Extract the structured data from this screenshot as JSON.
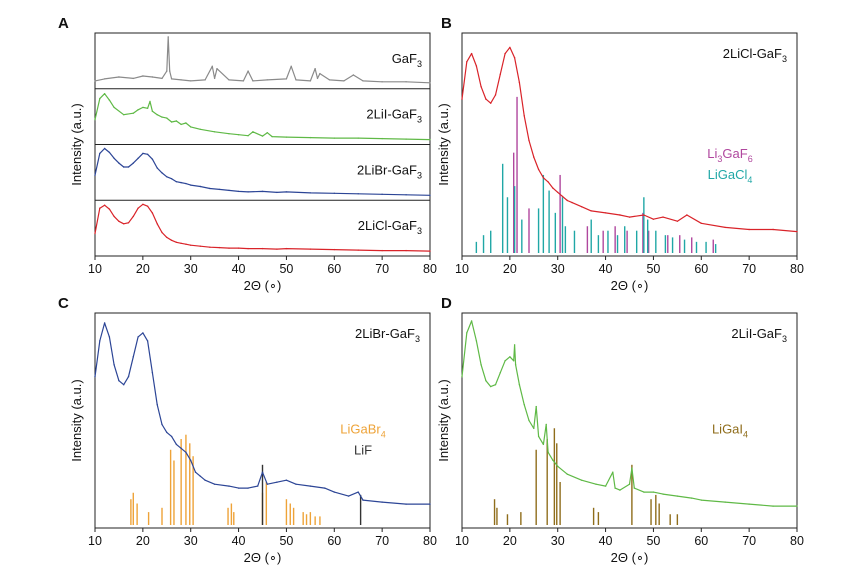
{
  "figure": {
    "background": "#ffffff"
  },
  "chart_data": [
    {
      "panel": "A",
      "type": "line",
      "xlabel": "2Θ (∘)",
      "ylabel": "Intensity (a.u.)",
      "xlim": [
        10,
        80
      ],
      "xticks": [
        10,
        20,
        30,
        40,
        50,
        60,
        70,
        80
      ],
      "stacked": true,
      "series": [
        {
          "label": "GaF",
          "sub": "3",
          "color": "#8a8a8a",
          "x": [
            10,
            12,
            15,
            18,
            20,
            22,
            24,
            25,
            25.3,
            25.6,
            26,
            28,
            30,
            33,
            34.5,
            35,
            35.5,
            38,
            41,
            42,
            43,
            46,
            50,
            51,
            52,
            55,
            56,
            56.5,
            57,
            59,
            62,
            64,
            66,
            70,
            75,
            80
          ],
          "y": [
            0.1,
            0.14,
            0.18,
            0.15,
            0.2,
            0.18,
            0.15,
            0.3,
            1.0,
            0.3,
            0.14,
            0.12,
            0.1,
            0.12,
            0.4,
            0.15,
            0.35,
            0.12,
            0.1,
            0.3,
            0.1,
            0.12,
            0.14,
            0.4,
            0.12,
            0.1,
            0.35,
            0.15,
            0.25,
            0.12,
            0.1,
            0.22,
            0.1,
            0.08,
            0.08,
            0.06
          ]
        },
        {
          "label": "2LiI-GaF",
          "sub": "3",
          "color": "#5fb946",
          "x": [
            10,
            11,
            12,
            13,
            14,
            16,
            18,
            19,
            20,
            21,
            21.5,
            22,
            23,
            24,
            25,
            26,
            27,
            28,
            29,
            30,
            32,
            35,
            38,
            40,
            42,
            43,
            45,
            46,
            47,
            50,
            55,
            60,
            65,
            70,
            75,
            80
          ],
          "y": [
            0.45,
            0.88,
            0.98,
            0.85,
            0.7,
            0.55,
            0.58,
            0.65,
            0.7,
            0.68,
            0.82,
            0.62,
            0.55,
            0.5,
            0.48,
            0.4,
            0.42,
            0.35,
            0.38,
            0.3,
            0.25,
            0.2,
            0.16,
            0.14,
            0.12,
            0.2,
            0.11,
            0.18,
            0.1,
            0.09,
            0.08,
            0.07,
            0.07,
            0.06,
            0.05,
            0.04
          ]
        },
        {
          "label": "2LiBr-GaF",
          "sub": "3",
          "color": "#2c4596",
          "x": [
            10,
            11,
            12,
            13,
            14,
            15,
            16,
            17,
            18,
            19,
            20,
            21,
            22,
            23,
            24,
            25,
            26,
            27,
            28,
            29,
            30,
            32,
            34,
            36,
            38,
            40,
            42,
            45,
            48,
            50,
            55,
            60,
            65,
            70,
            75,
            80
          ],
          "y": [
            0.45,
            0.9,
            1.0,
            0.92,
            0.8,
            0.7,
            0.62,
            0.62,
            0.7,
            0.8,
            0.9,
            0.88,
            0.78,
            0.6,
            0.5,
            0.42,
            0.38,
            0.32,
            0.3,
            0.28,
            0.25,
            0.22,
            0.18,
            0.16,
            0.14,
            0.12,
            0.11,
            0.12,
            0.1,
            0.11,
            0.09,
            0.08,
            0.07,
            0.06,
            0.05,
            0.04
          ]
        },
        {
          "label": "2LiCl-GaF",
          "sub": "3",
          "color": "#d92329",
          "x": [
            10,
            11,
            12,
            13,
            14,
            15,
            16,
            17,
            18,
            19,
            20,
            21,
            22,
            23,
            24,
            25,
            26,
            27,
            28,
            29,
            30,
            32,
            34,
            36,
            38,
            40,
            42,
            45,
            48,
            50,
            55,
            60,
            65,
            70,
            75,
            80
          ],
          "y": [
            0.4,
            0.92,
            0.98,
            0.9,
            0.75,
            0.65,
            0.6,
            0.62,
            0.75,
            0.92,
            1.0,
            0.96,
            0.82,
            0.6,
            0.42,
            0.32,
            0.26,
            0.22,
            0.2,
            0.18,
            0.16,
            0.14,
            0.12,
            0.11,
            0.1,
            0.1,
            0.09,
            0.09,
            0.08,
            0.09,
            0.08,
            0.07,
            0.06,
            0.05,
            0.05,
            0.04
          ]
        }
      ]
    },
    {
      "panel": "B",
      "type": "line",
      "xlabel": "2Θ (∘)",
      "ylabel": "Intensity (a.u.)",
      "xlim": [
        10,
        80
      ],
      "xticks": [
        10,
        20,
        30,
        40,
        50,
        60,
        70,
        80
      ],
      "sample": {
        "label": "2LiCl-GaF",
        "sub": "3"
      },
      "series": [
        {
          "name": "2LiCl-GaF3",
          "color": "#d92329",
          "x": [
            10,
            11,
            12,
            13,
            14,
            15,
            16,
            17,
            18,
            19,
            20,
            21,
            22,
            23,
            24,
            25,
            26,
            27,
            28,
            29,
            30,
            31,
            32,
            33,
            35,
            37,
            40,
            43,
            45,
            48,
            50,
            52,
            55,
            57,
            60,
            65,
            70,
            75,
            80
          ],
          "y": [
            0.7,
            0.88,
            0.92,
            0.86,
            0.76,
            0.7,
            0.68,
            0.72,
            0.82,
            0.92,
            0.95,
            0.9,
            0.78,
            0.62,
            0.5,
            0.42,
            0.36,
            0.32,
            0.3,
            0.27,
            0.25,
            0.23,
            0.21,
            0.2,
            0.18,
            0.16,
            0.15,
            0.14,
            0.13,
            0.14,
            0.12,
            0.13,
            0.11,
            0.14,
            0.1,
            0.08,
            0.07,
            0.07,
            0.06
          ]
        }
      ],
      "references": [
        {
          "label": "Li",
          "sub": "3",
          "label2": "GaF",
          "sub2": "6",
          "color": "#b0479e",
          "positions": [
            20.8,
            21.5,
            24.0,
            30.5,
            36.2,
            39.5,
            42.0,
            44.5,
            47.8,
            49.0,
            53.0,
            55.5,
            58.0,
            62.5
          ],
          "intensities": [
            0.45,
            0.7,
            0.2,
            0.35,
            0.12,
            0.1,
            0.12,
            0.1,
            0.18,
            0.1,
            0.08,
            0.08,
            0.07,
            0.06
          ]
        },
        {
          "label": "LiGaCl",
          "sub": "4",
          "color": "#20a7a6",
          "positions": [
            13.0,
            14.5,
            16.0,
            18.5,
            19.5,
            21.0,
            22.5,
            26.0,
            27.0,
            28.2,
            29.5,
            31.0,
            31.6,
            33.5,
            37.0,
            38.5,
            40.5,
            42.5,
            44.0,
            46.5,
            48.0,
            48.8,
            50.5,
            52.5,
            54.0,
            56.5,
            59.0,
            61.0,
            63.0
          ],
          "intensities": [
            0.05,
            0.08,
            0.1,
            0.4,
            0.25,
            0.3,
            0.15,
            0.2,
            0.35,
            0.28,
            0.18,
            0.25,
            0.12,
            0.1,
            0.15,
            0.08,
            0.1,
            0.08,
            0.12,
            0.1,
            0.25,
            0.15,
            0.1,
            0.08,
            0.07,
            0.06,
            0.05,
            0.05,
            0.04
          ]
        }
      ]
    },
    {
      "panel": "C",
      "type": "line",
      "xlabel": "2Θ (∘)",
      "ylabel": "Intensity (a.u.)",
      "xlim": [
        10,
        80
      ],
      "xticks": [
        10,
        20,
        30,
        40,
        50,
        60,
        70,
        80
      ],
      "sample": {
        "label": "2LiBr-GaF",
        "sub": "3"
      },
      "series": [
        {
          "name": "2LiBr-GaF3",
          "color": "#2c4596",
          "x": [
            10,
            11,
            12,
            13,
            14,
            15,
            16,
            17,
            18,
            19,
            20,
            21,
            22,
            23,
            24,
            25,
            26,
            27,
            28,
            29,
            30,
            31,
            32,
            33,
            35,
            38,
            40,
            42,
            44,
            45,
            46,
            48,
            50,
            52,
            55,
            58,
            60,
            63,
            65,
            66,
            70,
            75,
            80
          ],
          "y": [
            0.7,
            0.88,
            0.97,
            0.9,
            0.76,
            0.68,
            0.66,
            0.7,
            0.8,
            0.9,
            0.92,
            0.88,
            0.72,
            0.56,
            0.46,
            0.42,
            0.4,
            0.36,
            0.34,
            0.32,
            0.28,
            0.22,
            0.2,
            0.18,
            0.16,
            0.15,
            0.14,
            0.14,
            0.15,
            0.22,
            0.16,
            0.17,
            0.18,
            0.16,
            0.15,
            0.14,
            0.12,
            0.1,
            0.12,
            0.08,
            0.07,
            0.06,
            0.06
          ]
        }
      ],
      "references": [
        {
          "label": "LiGaBr",
          "sub": "4",
          "color": "#eea338",
          "positions": [
            17.5,
            18.0,
            18.8,
            21.2,
            24.0,
            25.8,
            26.5,
            28.0,
            29.0,
            29.8,
            30.5,
            37.8,
            38.5,
            39.0,
            45.0,
            45.8,
            50.0,
            50.8,
            51.5,
            53.5,
            54.2,
            55.0,
            56.0,
            57.0
          ],
          "intensities": [
            0.12,
            0.15,
            0.1,
            0.06,
            0.08,
            0.35,
            0.3,
            0.4,
            0.42,
            0.38,
            0.32,
            0.08,
            0.1,
            0.06,
            0.15,
            0.2,
            0.12,
            0.1,
            0.08,
            0.06,
            0.05,
            0.06,
            0.04,
            0.04
          ]
        },
        {
          "label": "LiF",
          "color": "#333333",
          "positions": [
            45.0,
            65.5
          ],
          "intensities": [
            0.28,
            0.14
          ]
        }
      ]
    },
    {
      "panel": "D",
      "type": "line",
      "xlabel": "2Θ (∘)",
      "ylabel": "Intensity (a.u.)",
      "xlim": [
        10,
        80
      ],
      "xticks": [
        10,
        20,
        30,
        40,
        50,
        60,
        70,
        80
      ],
      "sample": {
        "label": "2LiI-GaF",
        "sub": "3"
      },
      "series": [
        {
          "name": "2LiI-GaF3",
          "color": "#5fb946",
          "x": [
            10,
            11,
            12,
            13,
            14,
            15,
            16,
            17,
            18,
            19,
            20,
            20.8,
            21,
            21.2,
            22,
            23,
            24,
            25,
            25.5,
            26,
            27,
            27.6,
            28,
            29,
            30,
            32,
            35,
            38,
            40,
            41.5,
            42,
            43,
            45,
            45.5,
            46,
            48,
            50,
            52,
            55,
            58,
            60,
            65,
            70,
            75,
            80
          ],
          "y": [
            0.7,
            0.92,
            0.98,
            0.88,
            0.76,
            0.68,
            0.65,
            0.66,
            0.72,
            0.78,
            0.8,
            0.78,
            0.86,
            0.76,
            0.66,
            0.56,
            0.48,
            0.44,
            0.55,
            0.4,
            0.36,
            0.46,
            0.32,
            0.28,
            0.25,
            0.21,
            0.18,
            0.16,
            0.15,
            0.22,
            0.14,
            0.13,
            0.16,
            0.24,
            0.14,
            0.12,
            0.12,
            0.11,
            0.1,
            0.09,
            0.08,
            0.07,
            0.06,
            0.05,
            0.05
          ]
        }
      ],
      "references": [
        {
          "label": "LiGaI",
          "sub": "4",
          "color": "#8f6d1b",
          "positions": [
            16.8,
            17.3,
            19.5,
            22.3,
            25.5,
            27.8,
            29.3,
            29.8,
            30.5,
            37.5,
            38.5,
            45.5,
            49.5,
            50.5,
            51.2,
            53.5,
            55.0
          ],
          "intensities": [
            0.12,
            0.08,
            0.05,
            0.06,
            0.35,
            0.4,
            0.45,
            0.38,
            0.2,
            0.08,
            0.06,
            0.28,
            0.12,
            0.14,
            0.1,
            0.05,
            0.05
          ]
        }
      ]
    }
  ]
}
